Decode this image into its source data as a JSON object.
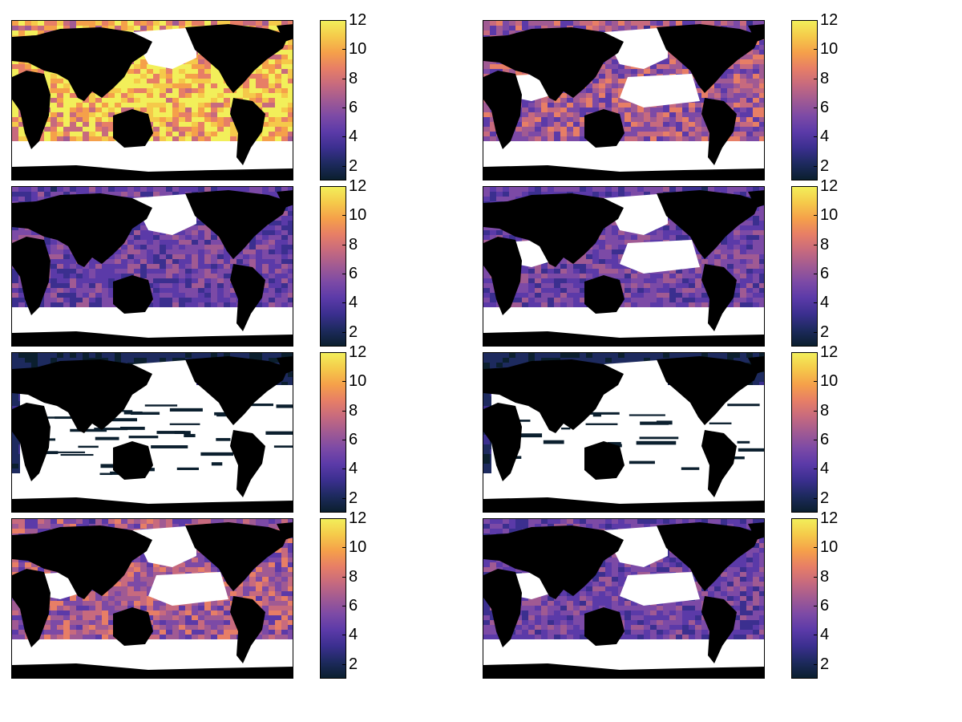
{
  "chart_data": [
    {
      "type": "heatmap",
      "panel": "row1-left",
      "colorbar": {
        "ticks": [
          2,
          4,
          6,
          8,
          10,
          12
        ],
        "range": [
          1,
          12
        ]
      },
      "intensity": "high",
      "coverage": "full"
    },
    {
      "type": "heatmap",
      "panel": "row1-right",
      "colorbar": {
        "ticks": [
          2,
          4,
          6,
          8,
          10,
          12
        ],
        "range": [
          1,
          12
        ]
      },
      "intensity": "medium",
      "coverage": "partial"
    },
    {
      "type": "heatmap",
      "panel": "row2-left",
      "colorbar": {
        "ticks": [
          2,
          4,
          6,
          8,
          10,
          12
        ],
        "range": [
          1,
          12
        ]
      },
      "intensity": "low",
      "coverage": "full"
    },
    {
      "type": "heatmap",
      "panel": "row2-right",
      "colorbar": {
        "ticks": [
          2,
          4,
          6,
          8,
          10,
          12
        ],
        "range": [
          1,
          12
        ]
      },
      "intensity": "low",
      "coverage": "partial"
    },
    {
      "type": "heatmap",
      "panel": "row3-left",
      "colorbar": {
        "ticks": [
          2,
          4,
          6,
          8,
          10,
          12
        ],
        "range": [
          1,
          12
        ]
      },
      "intensity": "very-low",
      "coverage": "sparse"
    },
    {
      "type": "heatmap",
      "panel": "row3-right",
      "colorbar": {
        "ticks": [
          2,
          4,
          6,
          8,
          10,
          12
        ],
        "range": [
          1,
          12
        ]
      },
      "intensity": "very-low",
      "coverage": "very-sparse"
    },
    {
      "type": "heatmap",
      "panel": "row4-left",
      "colorbar": {
        "ticks": [
          2,
          4,
          6,
          8,
          10,
          12
        ],
        "range": [
          1,
          12
        ]
      },
      "intensity": "medium",
      "coverage": "partial"
    },
    {
      "type": "heatmap",
      "panel": "row4-right",
      "colorbar": {
        "ticks": [
          2,
          4,
          6,
          8,
          10,
          12
        ],
        "range": [
          1,
          12
        ]
      },
      "intensity": "low",
      "coverage": "partial"
    }
  ],
  "colormap": [
    "#0b1f2e",
    "#1d2a5e",
    "#3b2f8f",
    "#5b3aa8",
    "#7c4aa6",
    "#a05a93",
    "#c76a7e",
    "#e77e66",
    "#f5a04a",
    "#f5c94a",
    "#f2ef5a"
  ],
  "colors": {
    "land": "#000000",
    "masked": "#ffffff",
    "frame": "#000000"
  }
}
